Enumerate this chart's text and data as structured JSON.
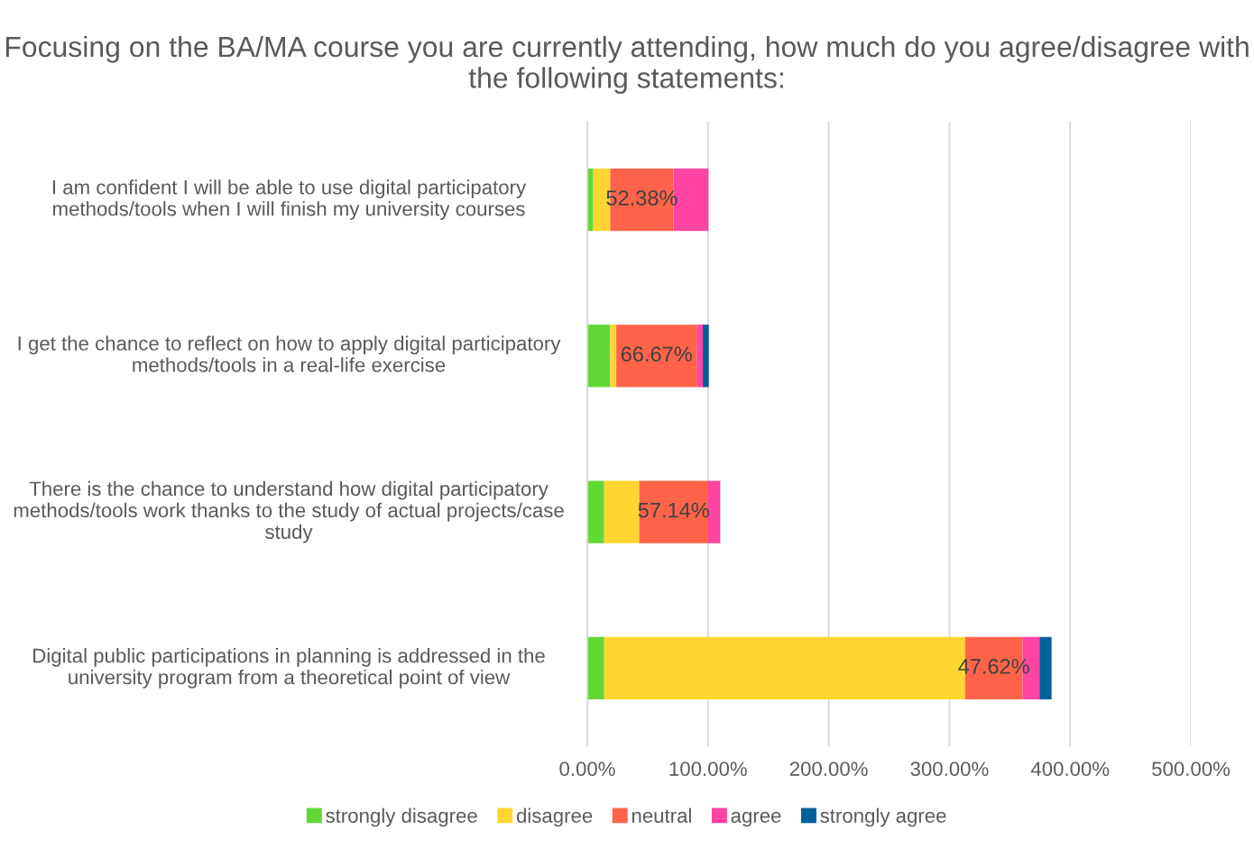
{
  "chart_data": {
    "type": "bar",
    "orientation": "horizontal",
    "stacked": true,
    "title": "Focusing on the BA/MA course you are currently attending, how much do you agree/disagree with the following statements:",
    "categories": [
      "I am confident I will be able to use digital participatory methods/tools when I will finish my university courses",
      "I get the chance to reflect on how to apply digital participatory methods/tools in a real-life exercise",
      "There is the chance to understand how digital participatory methods/tools work thanks to the study of actual projects/case study",
      "Digital public participations in planning is addressed in the university program from a theoretical point of view"
    ],
    "series": [
      {
        "name": "strongly disagree",
        "color": "#62d836",
        "values": [
          5,
          19,
          14,
          14
        ]
      },
      {
        "name": "disagree",
        "color": "#ffd630",
        "values": [
          14,
          5,
          29,
          299
        ]
      },
      {
        "name": "neutral",
        "color": "#ff644a",
        "values": [
          52.38,
          66.67,
          57.14,
          47.62
        ],
        "value_labels": [
          "52.38%",
          "66.67%",
          "57.14%",
          "47.62%"
        ]
      },
      {
        "name": "agree",
        "color": "#ff44a2",
        "values": [
          29,
          5,
          10,
          14
        ]
      },
      {
        "name": "strongly agree",
        "color": "#00609a",
        "values": [
          null,
          5,
          null,
          10
        ]
      }
    ],
    "xlim": [
      0,
      500
    ],
    "xticks": [
      {
        "value": 0,
        "label": "0.00%"
      },
      {
        "value": 100,
        "label": "100.00%"
      },
      {
        "value": 200,
        "label": "200.00%"
      },
      {
        "value": 300,
        "label": "300.00%"
      },
      {
        "value": 400,
        "label": "400.00%"
      },
      {
        "value": 500,
        "label": "500.00%"
      }
    ],
    "grid": "x",
    "legend": "bottom"
  }
}
